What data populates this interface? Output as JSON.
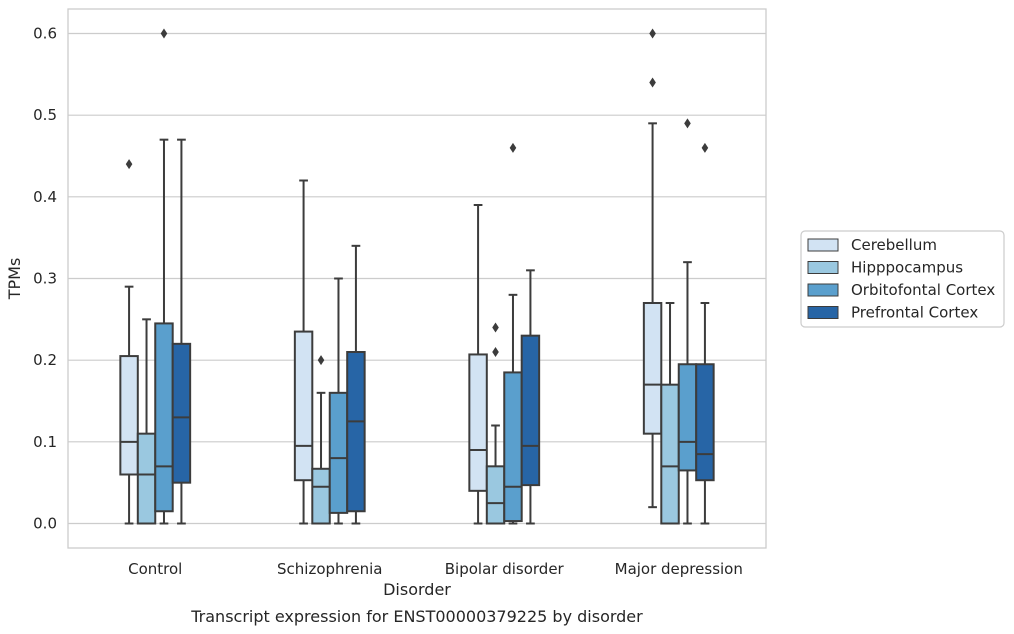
{
  "caption": "Transcript expression for ENST00000379225 by disorder",
  "chart_data": {
    "type": "box",
    "xlabel": "Disorder",
    "ylabel": "TPMs",
    "ylim": [
      -0.03,
      0.63
    ],
    "yticks": [
      0.0,
      0.1,
      0.2,
      0.3,
      0.4,
      0.5,
      0.6
    ],
    "ytick_labels": [
      "0.0",
      "0.1",
      "0.2",
      "0.3",
      "0.4",
      "0.5",
      "0.6"
    ],
    "grid": "horizontal",
    "legend_placement": "right",
    "categories": [
      "Control",
      "Schizophrenia",
      "Bipolar disorder",
      "Major depression"
    ],
    "series": [
      {
        "name": "Cerebellum",
        "color": "#d2e3f3",
        "boxes": [
          {
            "whislo": 0.0,
            "q1": 0.06,
            "med": 0.1,
            "q3": 0.205,
            "whishi": 0.29,
            "fliers": [
              0.44
            ]
          },
          {
            "whislo": 0.0,
            "q1": 0.053,
            "med": 0.095,
            "q3": 0.235,
            "whishi": 0.42,
            "fliers": []
          },
          {
            "whislo": 0.0,
            "q1": 0.04,
            "med": 0.09,
            "q3": 0.207,
            "whishi": 0.39,
            "fliers": []
          },
          {
            "whislo": 0.02,
            "q1": 0.11,
            "med": 0.17,
            "q3": 0.27,
            "whishi": 0.49,
            "fliers": [
              0.54,
              0.6
            ]
          }
        ]
      },
      {
        "name": "Hipppocampus",
        "color": "#9ac8e0",
        "boxes": [
          {
            "whislo": 0.0,
            "q1": 0.0,
            "med": 0.06,
            "q3": 0.11,
            "whishi": 0.25,
            "fliers": []
          },
          {
            "whislo": 0.0,
            "q1": 0.0,
            "med": 0.045,
            "q3": 0.067,
            "whishi": 0.16,
            "fliers": [
              0.2
            ]
          },
          {
            "whislo": 0.0,
            "q1": 0.0,
            "med": 0.025,
            "q3": 0.07,
            "whishi": 0.12,
            "fliers": [
              0.21,
              0.24
            ]
          },
          {
            "whislo": 0.0,
            "q1": 0.0,
            "med": 0.07,
            "q3": 0.17,
            "whishi": 0.27,
            "fliers": []
          }
        ]
      },
      {
        "name": "Orbitofontal Cortex",
        "color": "#5a9fcd",
        "boxes": [
          {
            "whislo": 0.0,
            "q1": 0.015,
            "med": 0.07,
            "q3": 0.245,
            "whishi": 0.47,
            "fliers": [
              0.6
            ]
          },
          {
            "whislo": 0.0,
            "q1": 0.013,
            "med": 0.08,
            "q3": 0.16,
            "whishi": 0.3,
            "fliers": []
          },
          {
            "whislo": 0.0,
            "q1": 0.003,
            "med": 0.045,
            "q3": 0.185,
            "whishi": 0.28,
            "fliers": [
              0.46
            ]
          },
          {
            "whislo": 0.0,
            "q1": 0.065,
            "med": 0.1,
            "q3": 0.195,
            "whishi": 0.32,
            "fliers": [
              0.49
            ]
          }
        ]
      },
      {
        "name": "Prefrontal Cortex",
        "color": "#2765a6",
        "boxes": [
          {
            "whislo": 0.0,
            "q1": 0.05,
            "med": 0.13,
            "q3": 0.22,
            "whishi": 0.47,
            "fliers": []
          },
          {
            "whislo": 0.0,
            "q1": 0.015,
            "med": 0.125,
            "q3": 0.21,
            "whishi": 0.34,
            "fliers": []
          },
          {
            "whislo": 0.0,
            "q1": 0.047,
            "med": 0.095,
            "q3": 0.23,
            "whishi": 0.31,
            "fliers": []
          },
          {
            "whislo": 0.0,
            "q1": 0.053,
            "med": 0.085,
            "q3": 0.195,
            "whishi": 0.27,
            "fliers": [
              0.46
            ]
          }
        ]
      }
    ]
  }
}
